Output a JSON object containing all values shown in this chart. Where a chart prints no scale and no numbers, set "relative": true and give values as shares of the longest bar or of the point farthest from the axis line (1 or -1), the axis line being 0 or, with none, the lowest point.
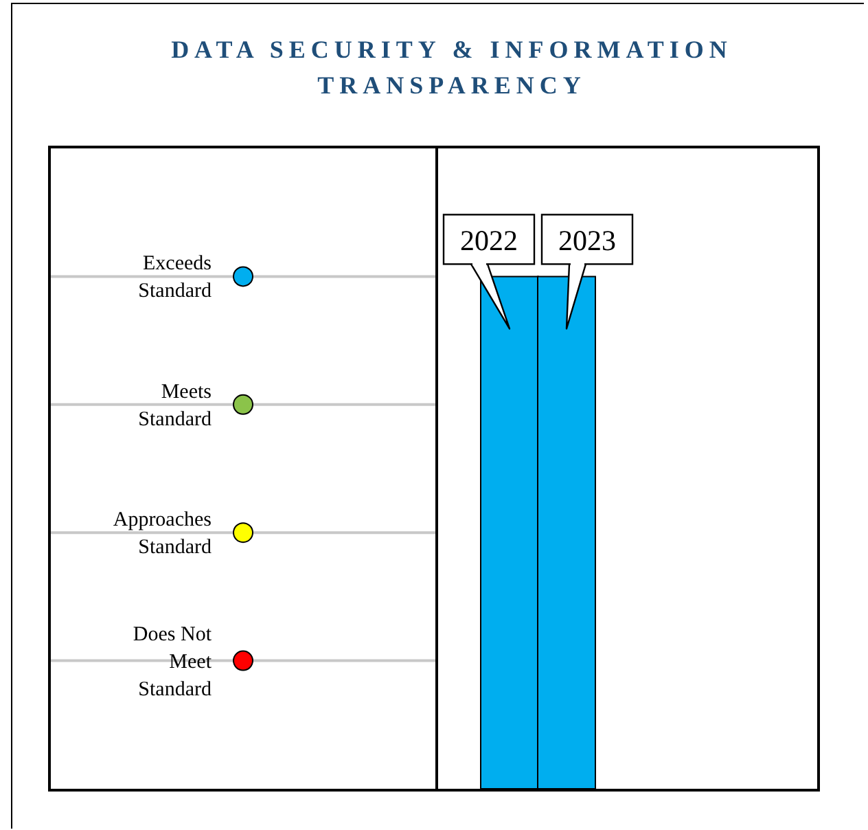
{
  "chart_data": {
    "type": "bar",
    "title": "DATA SECURITY & INFORMATION TRANSPARENCY",
    "categories": [
      "2022",
      "2023"
    ],
    "values": [
      1,
      1
    ],
    "relative": true,
    "color": "#00aeef",
    "annotations": [
      "Exceeds Standard",
      "Meets Standard",
      "Approaches Standard",
      "Does Not Meet Standard"
    ],
    "grid": true
  }
}
